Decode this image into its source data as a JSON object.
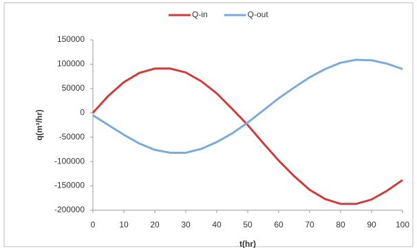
{
  "chart_data": {
    "type": "line",
    "x": [
      0,
      5,
      10,
      15,
      20,
      25,
      30,
      35,
      40,
      45,
      50,
      55,
      60,
      65,
      70,
      75,
      80,
      85,
      90,
      95,
      100
    ],
    "series": [
      {
        "name": "Q-in",
        "color": "#d03a3a",
        "values": [
          0,
          35000,
          63000,
          82000,
          91000,
          91000,
          83000,
          65000,
          40000,
          8000,
          -25000,
          -62000,
          -98000,
          -130000,
          -158000,
          -177000,
          -187000,
          -187000,
          -178000,
          -160000,
          -138000
        ]
      },
      {
        "name": "Q-out",
        "color": "#7aaad8",
        "values": [
          -5000,
          -25000,
          -45000,
          -63000,
          -76000,
          -82000,
          -82000,
          -74000,
          -60000,
          -42000,
          -20000,
          5000,
          30000,
          52000,
          73000,
          90000,
          103000,
          109000,
          108000,
          101000,
          90000
        ]
      }
    ],
    "xlim": [
      0,
      100
    ],
    "xticks": [
      0,
      10,
      20,
      30,
      40,
      50,
      60,
      70,
      80,
      90,
      100
    ],
    "ylim": [
      -200000,
      150000
    ],
    "yticks": [
      -200000,
      -150000,
      -100000,
      -50000,
      0,
      50000,
      100000,
      150000
    ],
    "xlabel": "t(hr)",
    "ylabel": "q(m³/hr)",
    "legend": "top",
    "grid": false
  }
}
